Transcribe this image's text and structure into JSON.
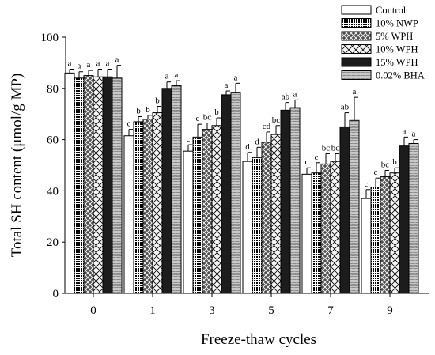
{
  "chart_data": {
    "type": "bar",
    "xlabel": "Freeze-thaw cycles",
    "ylabel": "Total SH content (μmol/g MP)",
    "ylim": [
      0,
      100
    ],
    "yticks": [
      0,
      20,
      40,
      60,
      80,
      100
    ],
    "categories": [
      "0",
      "1",
      "3",
      "5",
      "7",
      "9"
    ],
    "legend_position": "top-right",
    "series": [
      {
        "name": "Control",
        "pattern": "white",
        "values": [
          86,
          61.5,
          55.5,
          51.5,
          46.5,
          37
        ],
        "errors": [
          1.5,
          2.5,
          2.5,
          3.5,
          2.5,
          3.5
        ],
        "letters": [
          "a",
          "c",
          "c",
          "d",
          "c",
          "c"
        ]
      },
      {
        "name": "10% NWP",
        "pattern": "dots",
        "values": [
          84,
          67,
          61,
          53,
          47,
          41.5
        ],
        "errors": [
          2.5,
          2,
          5,
          4,
          4,
          3.5
        ],
        "letters": [
          "a",
          "b",
          "c",
          "d",
          "c",
          "c"
        ]
      },
      {
        "name": "5% WPH",
        "pattern": "xhatch",
        "values": [
          85,
          68,
          64,
          59,
          50.5,
          45.5
        ],
        "errors": [
          2,
          1.5,
          2.5,
          4,
          4,
          2.5
        ],
        "letters": [
          "a",
          "b",
          "bc",
          "cd",
          "bc",
          "bc"
        ]
      },
      {
        "name": "10% WPH",
        "pattern": "diamond",
        "values": [
          84.5,
          70.5,
          65.5,
          62,
          51.5,
          47
        ],
        "errors": [
          3,
          2.5,
          3,
          3.5,
          3,
          2
        ],
        "letters": [
          "a",
          "b",
          "b",
          "bc",
          "bc",
          "b"
        ]
      },
      {
        "name": "15% WPH",
        "pattern": "black",
        "values": [
          84.5,
          80,
          77.5,
          71.5,
          65,
          57.5
        ],
        "errors": [
          3,
          2.5,
          1.5,
          3,
          5.5,
          3.5
        ],
        "letters": [
          "a",
          "a",
          "a",
          "ab",
          "ab",
          "a"
        ]
      },
      {
        "name": "0.02% BHA",
        "pattern": "brick",
        "values": [
          84,
          81,
          78.5,
          72.5,
          67.5,
          58.5
        ],
        "errors": [
          5,
          2,
          3.5,
          3,
          9,
          1.5
        ],
        "letters": [
          "a",
          "a",
          "a",
          "a",
          "a",
          "a"
        ]
      }
    ]
  }
}
